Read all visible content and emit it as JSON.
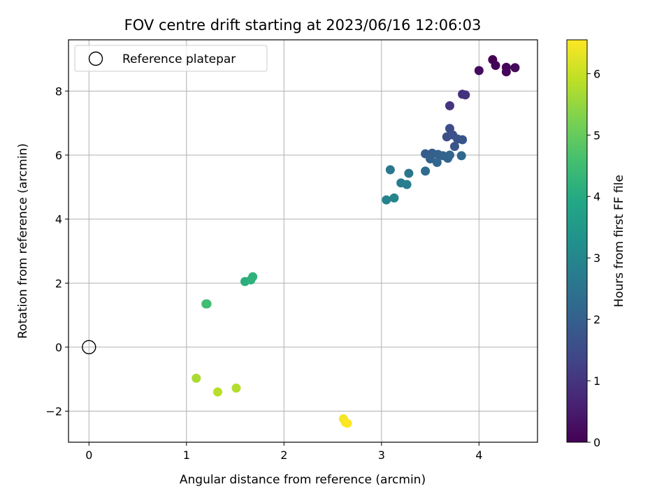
{
  "chart_data": {
    "type": "scatter",
    "title": "FOV centre drift starting at 2023/06/16 12:06:03",
    "xlabel": "Angular distance from reference (arcmin)",
    "ylabel": "Rotation from reference (arcmin)",
    "xlim": [
      -0.21,
      4.6
    ],
    "ylim": [
      -2.97,
      9.6
    ],
    "xticks": [
      0,
      1,
      2,
      3,
      4
    ],
    "yticks": [
      -2,
      0,
      2,
      4,
      6,
      8
    ],
    "grid": true,
    "legend": {
      "position": "top-left",
      "entries": [
        "Reference platepar"
      ]
    },
    "reference_point": {
      "x": 0,
      "y": 0,
      "label": "Reference platepar"
    },
    "colorbar": {
      "label": "Hours from first FF file",
      "range": [
        0,
        6.55
      ],
      "ticks": [
        0,
        1,
        2,
        3,
        4,
        5,
        6
      ],
      "colormap": "viridis"
    },
    "points": [
      {
        "x": 4.14,
        "y": 8.98,
        "h": 0.0
      },
      {
        "x": 4.17,
        "y": 8.8,
        "h": 0.05
      },
      {
        "x": 4.28,
        "y": 8.74,
        "h": 0.1
      },
      {
        "x": 4.28,
        "y": 8.6,
        "h": 0.12
      },
      {
        "x": 4.37,
        "y": 8.73,
        "h": 0.15
      },
      {
        "x": 4.0,
        "y": 8.64,
        "h": 0.2
      },
      {
        "x": 3.83,
        "y": 7.9,
        "h": 0.9
      },
      {
        "x": 3.86,
        "y": 7.88,
        "h": 0.95
      },
      {
        "x": 3.7,
        "y": 7.54,
        "h": 1.0
      },
      {
        "x": 3.7,
        "y": 6.83,
        "h": 1.5
      },
      {
        "x": 3.67,
        "y": 6.57,
        "h": 1.55
      },
      {
        "x": 3.73,
        "y": 6.63,
        "h": 1.6
      },
      {
        "x": 3.78,
        "y": 6.5,
        "h": 1.65
      },
      {
        "x": 3.83,
        "y": 6.48,
        "h": 1.7
      },
      {
        "x": 3.75,
        "y": 6.27,
        "h": 1.75
      },
      {
        "x": 3.45,
        "y": 6.04,
        "h": 1.9
      },
      {
        "x": 3.52,
        "y": 6.06,
        "h": 1.95
      },
      {
        "x": 3.5,
        "y": 5.88,
        "h": 2.0
      },
      {
        "x": 3.58,
        "y": 6.02,
        "h": 2.05
      },
      {
        "x": 3.63,
        "y": 5.98,
        "h": 2.1
      },
      {
        "x": 3.68,
        "y": 5.9,
        "h": 2.1
      },
      {
        "x": 3.7,
        "y": 6.0,
        "h": 2.15
      },
      {
        "x": 3.57,
        "y": 5.77,
        "h": 2.2
      },
      {
        "x": 3.82,
        "y": 5.98,
        "h": 2.2
      },
      {
        "x": 3.45,
        "y": 5.5,
        "h": 2.3
      },
      {
        "x": 3.09,
        "y": 5.54,
        "h": 2.6
      },
      {
        "x": 3.28,
        "y": 5.43,
        "h": 2.6
      },
      {
        "x": 3.2,
        "y": 5.13,
        "h": 2.7
      },
      {
        "x": 3.26,
        "y": 5.08,
        "h": 2.75
      },
      {
        "x": 3.05,
        "y": 4.6,
        "h": 2.9
      },
      {
        "x": 3.13,
        "y": 4.66,
        "h": 2.95
      },
      {
        "x": 1.6,
        "y": 2.05,
        "h": 4.1
      },
      {
        "x": 1.66,
        "y": 2.1,
        "h": 4.15
      },
      {
        "x": 1.68,
        "y": 2.2,
        "h": 4.2
      },
      {
        "x": 1.2,
        "y": 1.35,
        "h": 4.5
      },
      {
        "x": 1.21,
        "y": 1.35,
        "h": 4.5
      },
      {
        "x": 1.1,
        "y": -0.97,
        "h": 5.7
      },
      {
        "x": 1.32,
        "y": -1.4,
        "h": 5.85
      },
      {
        "x": 1.51,
        "y": -1.28,
        "h": 5.8
      },
      {
        "x": 2.61,
        "y": -2.24,
        "h": 6.45
      },
      {
        "x": 2.63,
        "y": -2.35,
        "h": 6.5
      },
      {
        "x": 2.65,
        "y": -2.38,
        "h": 6.55
      }
    ]
  }
}
